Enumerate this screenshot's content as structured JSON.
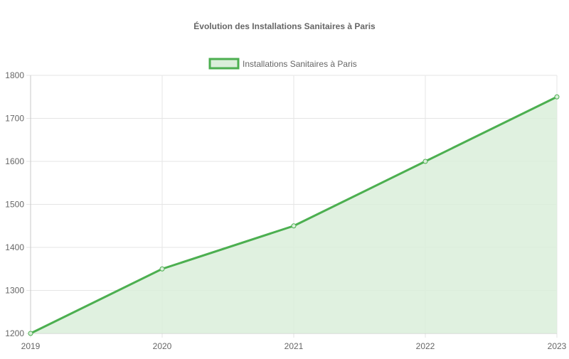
{
  "chart_data": {
    "type": "area",
    "title": "Évolution des Installations Sanitaires à Paris",
    "x": [
      "2019",
      "2020",
      "2021",
      "2022",
      "2023"
    ],
    "series": [
      {
        "name": "Installations Sanitaires à Paris",
        "values": [
          1200,
          1350,
          1450,
          1600,
          1750
        ],
        "color": "#4caf50",
        "fill": "#daeeda"
      }
    ],
    "ylim": [
      1200,
      1800
    ],
    "yticks": [
      "1200",
      "1300",
      "1400",
      "1500",
      "1600",
      "1700",
      "1800"
    ],
    "grid": true,
    "legend": "top-center"
  }
}
